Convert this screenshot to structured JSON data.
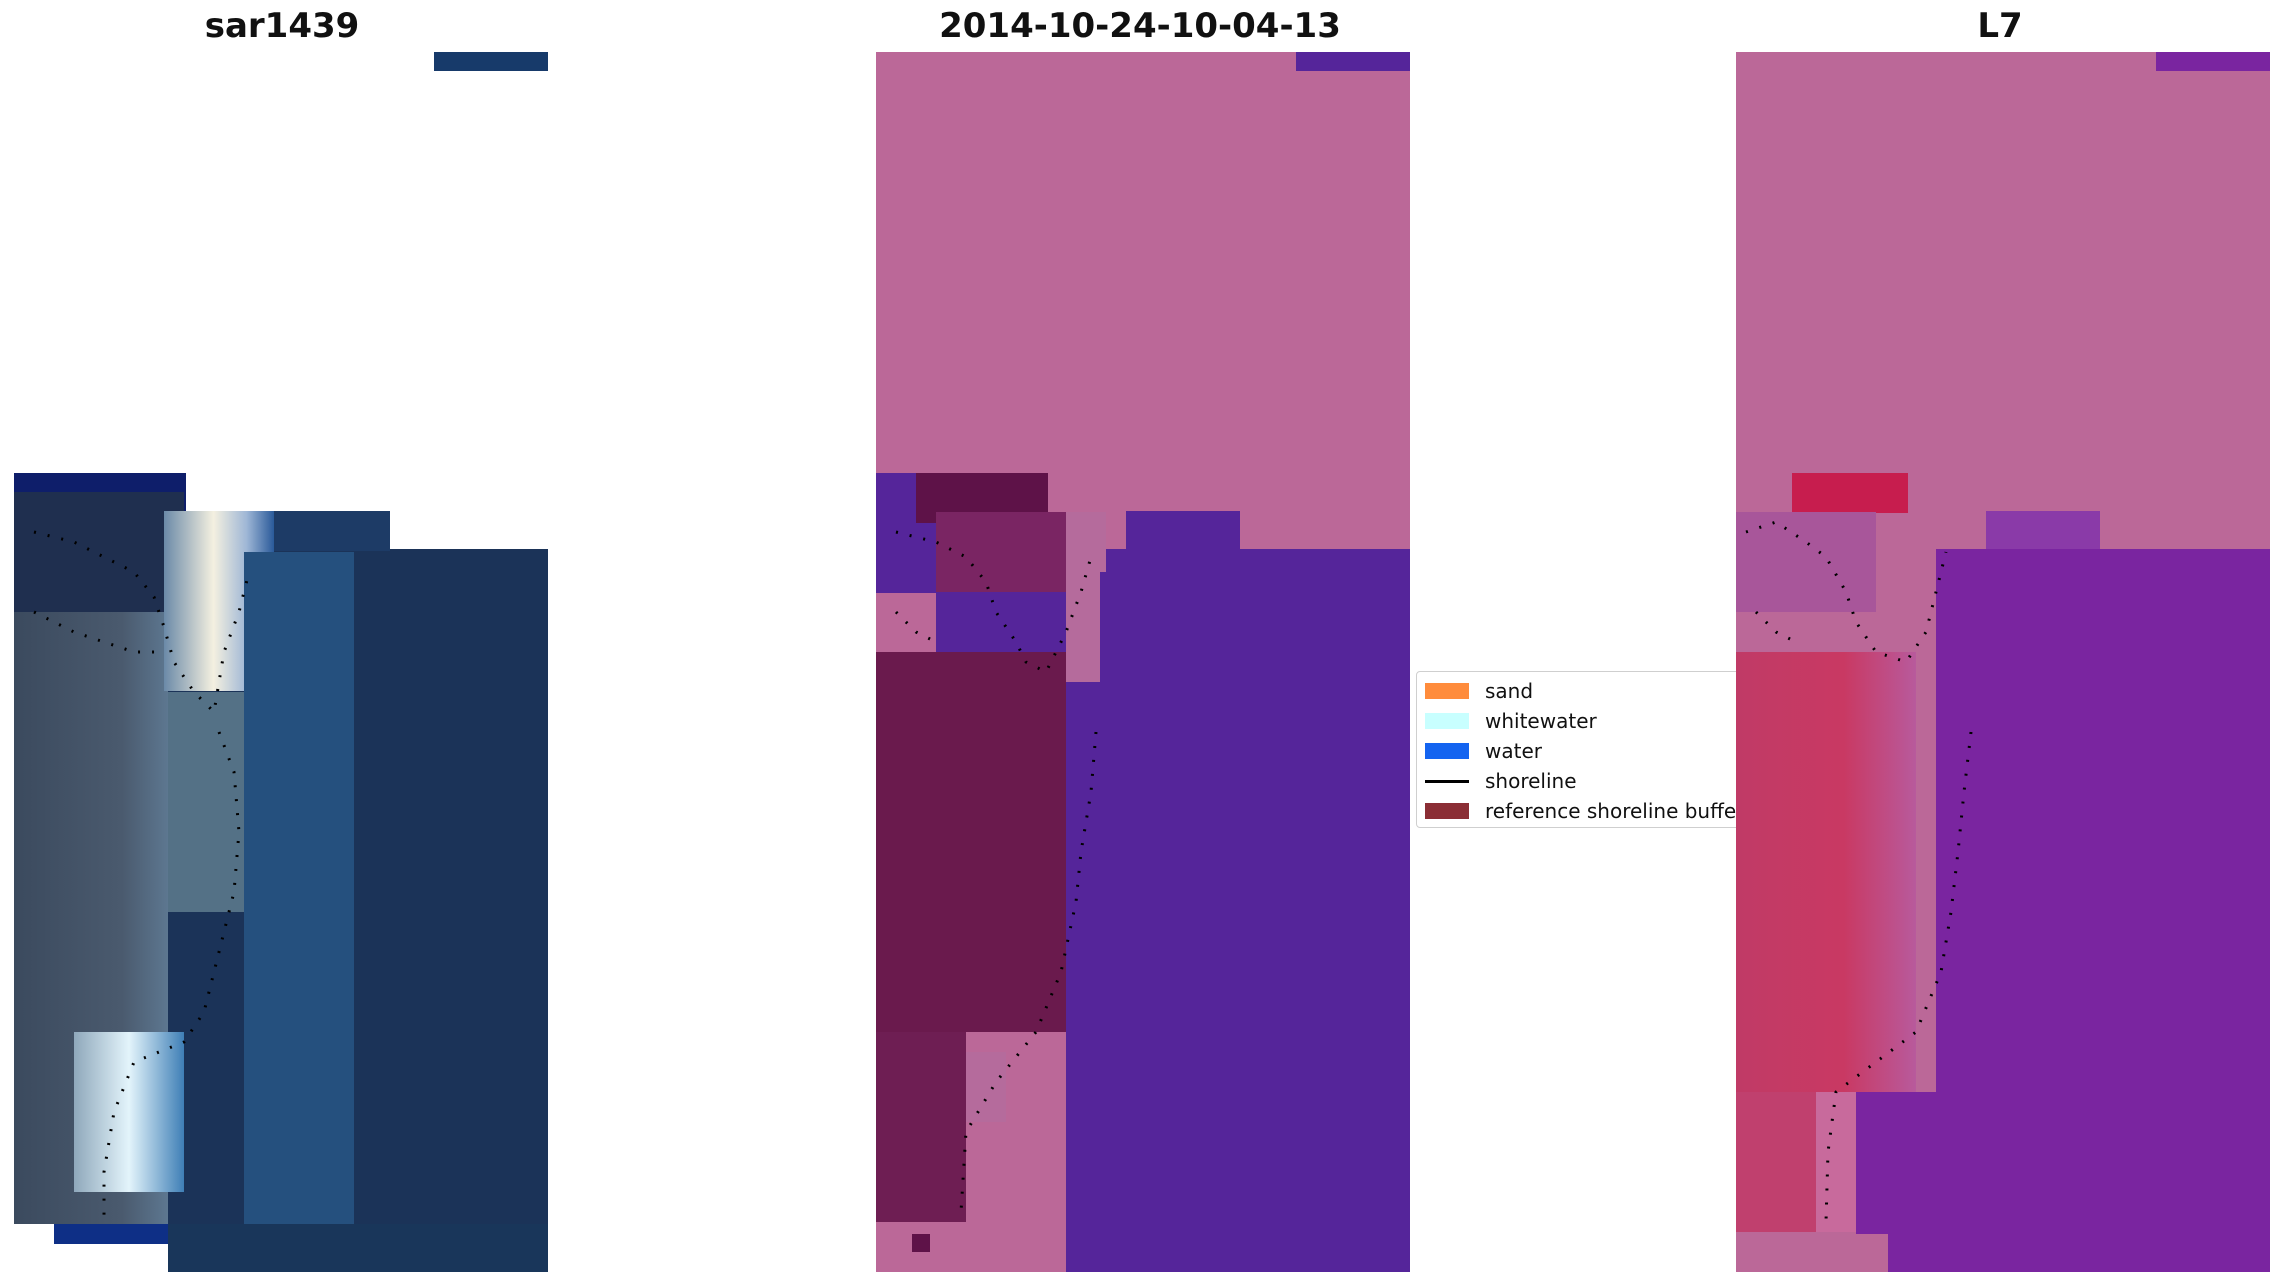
{
  "panels": {
    "left": {
      "title": "sar1439"
    },
    "middle": {
      "title": "2014-10-24-10-04-13"
    },
    "right": {
      "title": "L7"
    }
  },
  "legend": {
    "items": [
      {
        "label": "sand",
        "color": "#ff8c3c"
      },
      {
        "label": "whitewater",
        "color": "#c8ffff"
      },
      {
        "label": "water",
        "color": "#1464f0"
      },
      {
        "label": "shoreline",
        "color": "#000000"
      },
      {
        "label": "reference shoreline buffer",
        "color": "#8b2e35"
      }
    ]
  },
  "colors": {
    "satellite_dark": "#1b3358",
    "classified_background": "#bb6898",
    "classified_water": "#55259a",
    "classified_land": "#6d1b4f",
    "l7_water": "#7a25a0",
    "l7_land": "#c7305c"
  }
}
